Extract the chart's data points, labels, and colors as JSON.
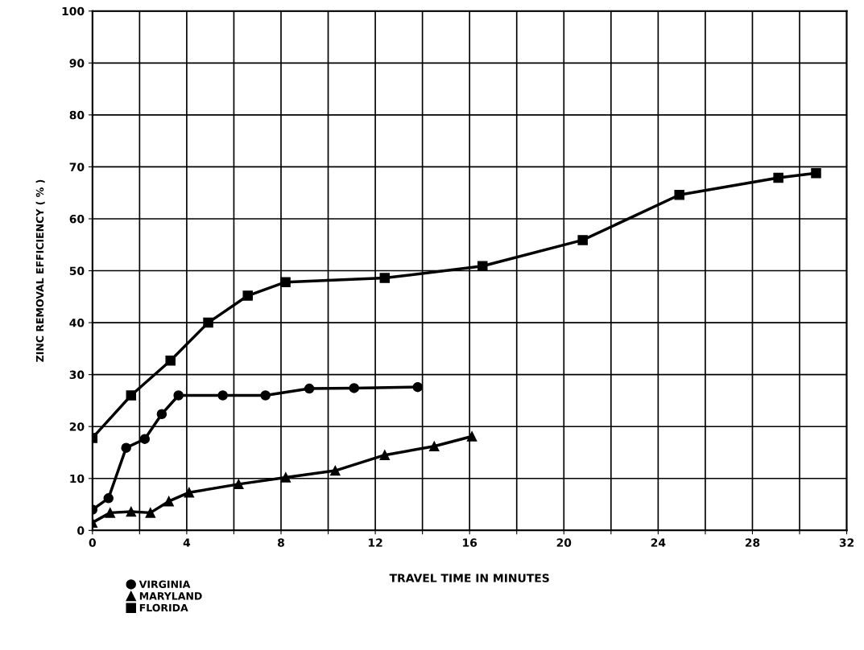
{
  "chart_data": {
    "type": "line",
    "xlabel": "TRAVEL TIME IN MINUTES",
    "ylabel": "ZINC REMOVAL EFFICIENCY ( % )",
    "xlim": [
      0,
      32
    ],
    "ylim": [
      0,
      100
    ],
    "xticks": [
      0,
      {
        "value": 2,
        "label": null
      },
      4,
      {
        "value": 6,
        "label": null
      },
      8,
      {
        "value": 10,
        "label": null
      },
      12,
      {
        "value": 14,
        "label": null
      },
      16,
      {
        "value": 18,
        "label": null
      },
      20,
      {
        "value": 22,
        "label": null
      },
      24,
      {
        "value": 26,
        "label": null
      },
      28,
      {
        "value": 30,
        "label": null
      },
      32
    ],
    "yticks": [
      0,
      10,
      20,
      30,
      40,
      50,
      60,
      70,
      80,
      90,
      100
    ],
    "grid": true,
    "legend": "bottom left",
    "line_style": "solid",
    "series": [
      {
        "name": "VIRGINIA",
        "color": "#000000",
        "marker": "circle",
        "x": [
          0,
          0.68,
          1.43,
          2.22,
          2.94,
          3.65,
          5.53,
          7.34,
          9.2,
          11.1,
          13.8
        ],
        "values": [
          4.0,
          6.2,
          15.9,
          17.6,
          22.4,
          26.0,
          26.0,
          26.0,
          27.3,
          27.4,
          27.6
        ]
      },
      {
        "name": "MARYLAND",
        "color": "#000000",
        "marker": "triangle",
        "x": [
          0,
          0.75,
          1.64,
          2.46,
          3.24,
          4.1,
          6.2,
          8.2,
          10.3,
          12.4,
          14.5,
          16.1
        ],
        "values": [
          1.5,
          3.4,
          3.6,
          3.4,
          5.6,
          7.3,
          8.9,
          10.2,
          11.5,
          14.5,
          16.2,
          18.1
        ]
      },
      {
        "name": "FLORIDA",
        "color": "#000000",
        "marker": "square",
        "x": [
          0,
          1.64,
          3.31,
          4.91,
          6.59,
          8.19,
          12.4,
          16.55,
          20.8,
          24.9,
          29.1,
          30.7
        ],
        "values": [
          17.8,
          26.0,
          32.7,
          40.0,
          45.2,
          47.8,
          48.6,
          50.9,
          55.9,
          64.6,
          67.9,
          68.8
        ]
      }
    ]
  }
}
